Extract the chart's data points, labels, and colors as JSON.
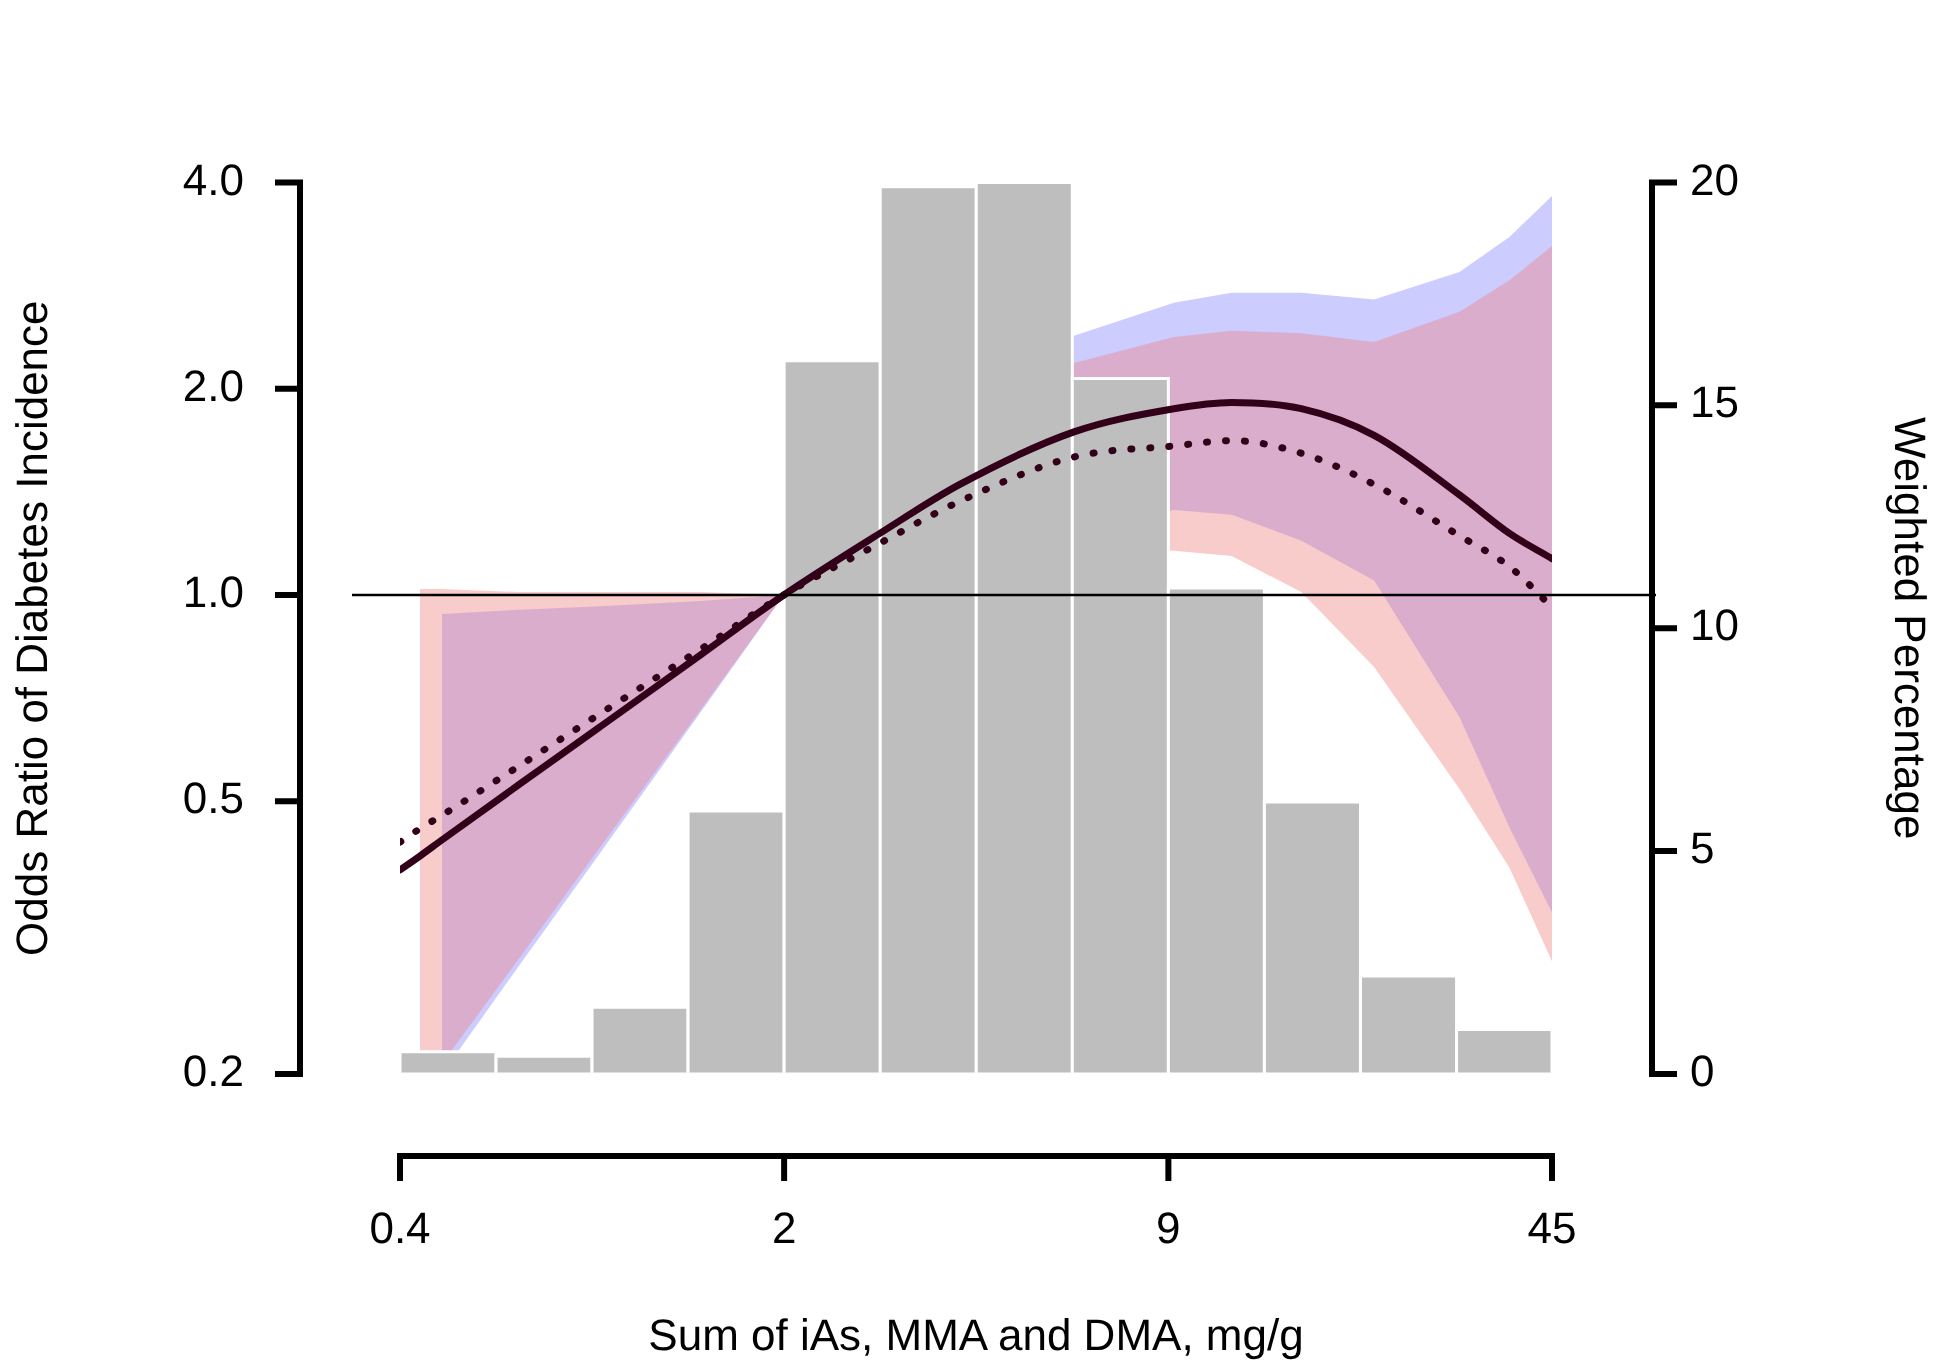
{
  "chart_data": {
    "type": "line",
    "xlabel": "Sum of iAs, MMA and DMA, mg/g",
    "ylabel": "Odds Ratio of Diabetes Incidence",
    "y2label": "Weighted Percentage",
    "log": "xy",
    "grid": false,
    "xlim": [
      0.4,
      45
    ],
    "xticks": [
      0.4,
      {
        "value": 1.932,
        "label": "2"
      },
      {
        "value": 9.336,
        "label": "9"
      },
      45
    ],
    "ylim": [
      0.2,
      4
    ],
    "yticks": [
      0.2,
      0.5,
      {
        "value": 1,
        "label": "1.0"
      },
      {
        "value": 2,
        "label": "2.0"
      },
      {
        "value": 4,
        "label": "4.0"
      }
    ],
    "y2lim": [
      0,
      20
    ],
    "y2ticks": [
      0,
      5,
      10,
      15,
      20
    ],
    "ref_lines": [
      {
        "axis": "y",
        "value": 1,
        "color": "#000000"
      }
    ],
    "series": [
      {
        "type": "histogram",
        "axis": "y2",
        "color": "#bebebe",
        "bins": [
          0.4,
          0.593,
          0.879,
          1.303,
          1.932,
          2.865,
          4.247,
          6.297,
          9.336,
          13.84,
          20.52,
          30.43,
          45
        ],
        "values": [
          0.5,
          0.4,
          1.5,
          5.9,
          16.0,
          19.9,
          20.0,
          15.6,
          10.9,
          6.1,
          2.2,
          1.0
        ]
      },
      {
        "color": "#33001a",
        "line_style": "solid",
        "x": [
          0.4,
          0.434,
          0.475,
          0.654,
          0.908,
          1.37,
          1.93,
          2.86,
          3.97,
          6.34,
          9.55,
          12.1,
          16.1,
          21.7,
          30.8,
          37.8,
          45
        ],
        "values": [
          0.397,
          0.416,
          0.439,
          0.53,
          0.642,
          0.817,
          1,
          1.23,
          1.45,
          1.73,
          1.87,
          1.91,
          1.87,
          1.71,
          1.4,
          1.23,
          1.13
        ],
        "lower": [
          null,
          null,
          0.2,
          0.289,
          0.42,
          0.673,
          1,
          1.05,
          1.09,
          1.22,
          1.33,
          1.31,
          1.2,
          1.05,
          0.663,
          0.458,
          0.344
        ],
        "upper": [
          null,
          null,
          0.938,
          0.952,
          0.963,
          0.98,
          1,
          1.4,
          1.83,
          2.39,
          2.67,
          2.76,
          2.76,
          2.7,
          2.96,
          3.33,
          3.82
        ]
      },
      {
        "color": "#33001a",
        "line_style": "dotted",
        "x": [
          0.4,
          0.434,
          0.475,
          0.654,
          0.908,
          1.37,
          1.93,
          2.86,
          3.97,
          6.34,
          9.55,
          12.1,
          16.1,
          21.7,
          30.8,
          37.8,
          45
        ],
        "values": [
          0.436,
          0.456,
          0.477,
          0.564,
          0.671,
          0.833,
          1,
          1.19,
          1.37,
          1.59,
          1.65,
          1.68,
          1.61,
          1.45,
          1.22,
          1.1,
          0.96
        ],
        "lower": [
          null,
          0.2,
          0.207,
          0.296,
          0.428,
          0.679,
          1,
          1.04,
          1.07,
          1.16,
          1.16,
          1.14,
          1.01,
          0.785,
          0.521,
          0.4,
          0.292
        ],
        "upper": [
          null,
          1.02,
          1.02,
          1.01,
          1.01,
          1.01,
          1,
          1.36,
          1.76,
          2.18,
          2.38,
          2.43,
          2.41,
          2.34,
          2.59,
          2.88,
          3.23
        ]
      }
    ]
  }
}
